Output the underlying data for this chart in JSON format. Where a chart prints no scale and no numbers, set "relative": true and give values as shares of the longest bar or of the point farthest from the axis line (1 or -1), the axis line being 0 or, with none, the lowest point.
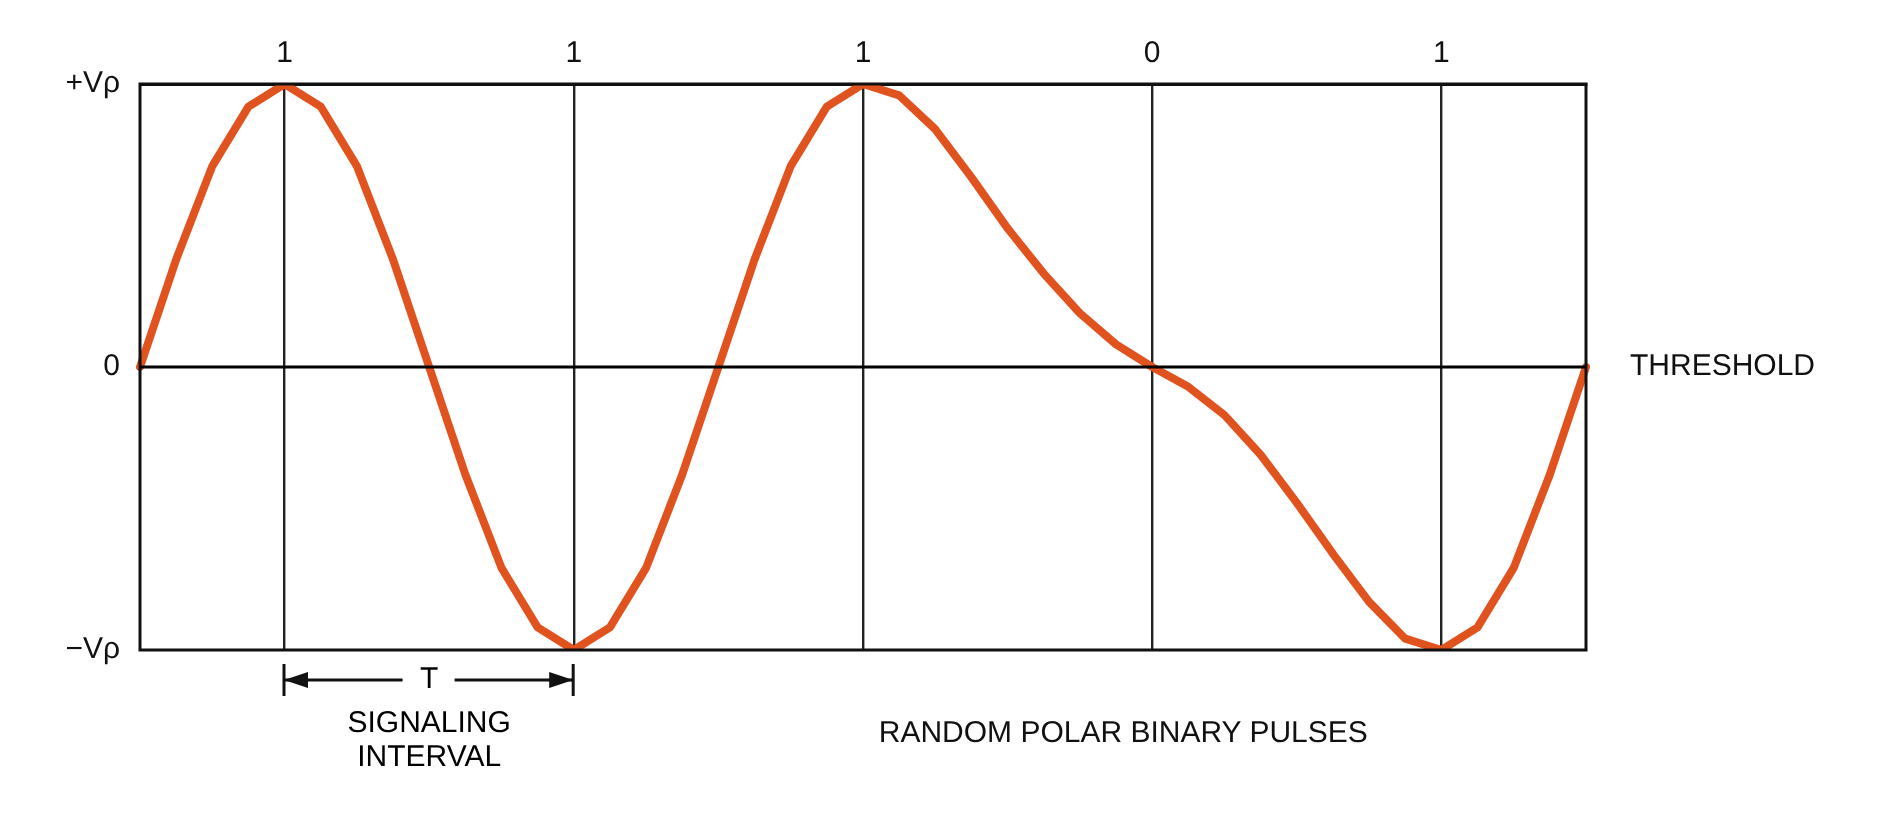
{
  "chart_data": {
    "type": "line",
    "xlabel": "RANDOM POLAR BINARY PULSES",
    "categories": [
      null,
      null,
      null,
      null,
      "1",
      null,
      null,
      null,
      null,
      null,
      null,
      null,
      "1",
      null,
      null,
      null,
      null,
      null,
      null,
      null,
      "1",
      null,
      null,
      null,
      null,
      null,
      null,
      null,
      "0",
      null,
      null,
      null,
      null,
      null,
      null,
      null,
      "1",
      null,
      null,
      null,
      null
    ],
    "series": [
      {
        "color": "#e0521e",
        "values": [
          0,
          0.38,
          0.71,
          0.92,
          1,
          0.92,
          0.71,
          0.38,
          0,
          -0.38,
          -0.71,
          -0.92,
          -1,
          -0.92,
          -0.71,
          -0.38,
          0,
          0.38,
          0.71,
          0.92,
          1,
          0.96,
          0.84,
          0.67,
          0.49,
          0.33,
          0.19,
          0.08,
          0,
          -0.07,
          -0.17,
          -0.31,
          -0.48,
          -0.66,
          -0.83,
          -0.96,
          -1,
          -0.92,
          -0.71,
          -0.38,
          0
        ]
      }
    ],
    "relative": true,
    "ref_lines": [
      {
        "axis": "y",
        "value": 0,
        "label": "THRESHOLD",
        "color": "#000000"
      }
    ],
    "annotations": [
      "+Vρ",
      "0",
      "−Vρ",
      "T",
      "SIGNALING INTERVAL"
    ],
    "grid": "x",
    "marker": "none",
    "line_style": "solid",
    "legend": false
  }
}
